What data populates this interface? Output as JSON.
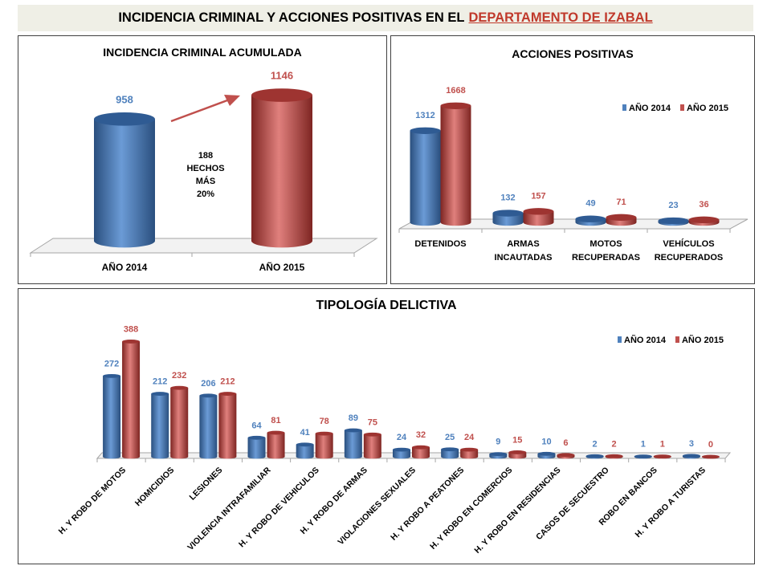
{
  "header": {
    "title_prefix": "INCIDENCIA CRIMINAL Y ACCIONES POSITIVAS EN EL",
    "title_highlight": "DEPARTAMENTO DE IZABAL",
    "highlight_color": "#c0392b"
  },
  "colors": {
    "y2014": "#4f81bd",
    "y2015": "#c0504d"
  },
  "chart_data": [
    {
      "type": "bar",
      "title": "INCIDENCIA CRIMINAL ACUMULADA",
      "categories": [
        "AÑO 2014",
        "AÑO 2015"
      ],
      "values": [
        958,
        1146
      ],
      "annotation": [
        "188",
        "HECHOS",
        "MÁS",
        "20%"
      ],
      "grid": false
    },
    {
      "type": "bar",
      "title": "ACCIONES POSITIVAS",
      "categories": [
        [
          "DETENIDOS"
        ],
        [
          "ARMAS",
          "INCAUTADAS"
        ],
        [
          "MOTOS",
          "RECUPERADAS"
        ],
        [
          "VEHÍCULOS",
          "RECUPERADOS"
        ]
      ],
      "series": [
        {
          "name": "AÑO 2014",
          "values": [
            1312,
            132,
            49,
            23
          ]
        },
        {
          "name": "AÑO 2015",
          "values": [
            1668,
            157,
            71,
            36
          ]
        }
      ],
      "legend": "top-right",
      "grid": false
    },
    {
      "type": "bar",
      "title": "TIPOLOGÍA DELICTIVA",
      "categories": [
        "H. Y ROBO DE MOTOS",
        "HOMICIDIOS",
        "LESIONES",
        "VIOLENCIA INTRAFAMILIAR",
        "H. Y ROBO DE VEHICULOS",
        "H. Y ROBO DE ARMAS",
        "VIOLACIONES SEXUALES",
        "H. Y ROBO A PEATONES",
        "H. Y ROBO EN COMERCIOS",
        "H. Y ROBO EN RESIDENCIAS",
        "CASOS DE SECUESTRO",
        "ROBO EN BANCOS",
        "H. Y ROBO A TURISTAS"
      ],
      "series": [
        {
          "name": "AÑO 2014",
          "values": [
            272,
            212,
            206,
            64,
            41,
            89,
            24,
            25,
            9,
            10,
            2,
            1,
            3
          ]
        },
        {
          "name": "AÑO 2015",
          "values": [
            388,
            232,
            212,
            81,
            78,
            75,
            32,
            24,
            15,
            6,
            2,
            1,
            0
          ]
        }
      ],
      "legend": "top-right",
      "grid": false
    }
  ]
}
